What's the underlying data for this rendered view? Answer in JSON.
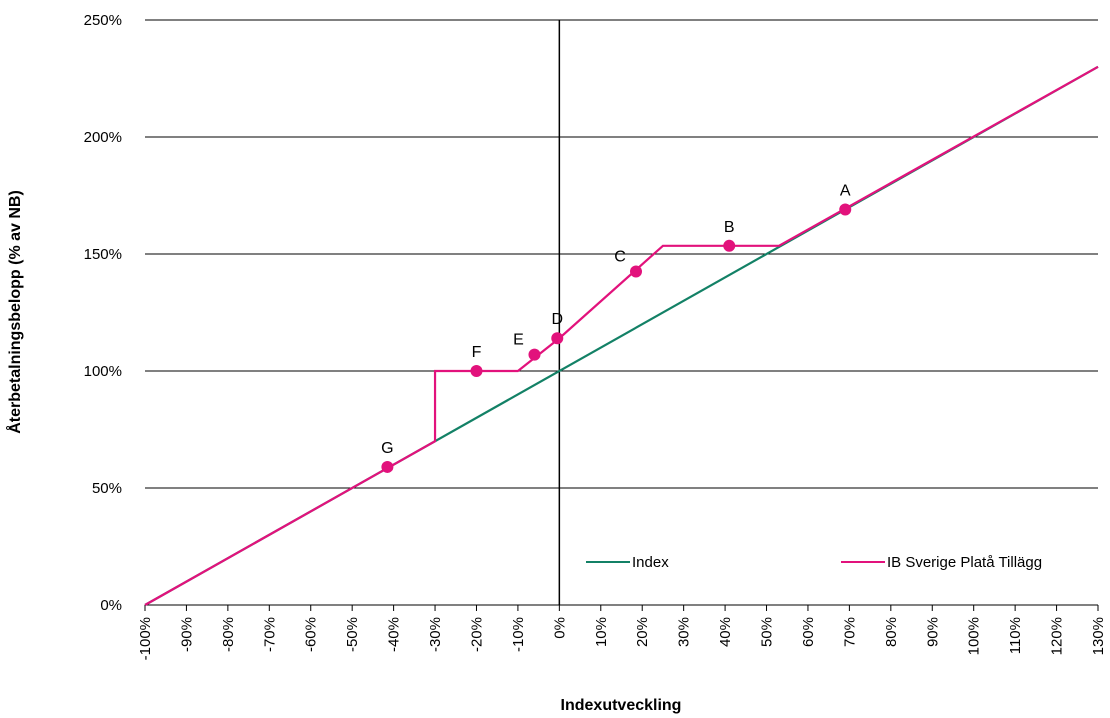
{
  "chart_data": {
    "type": "line",
    "xlabel": "Indexutveckling",
    "ylabel": "Återbetalningsbelopp (% av NB)",
    "xlim": [
      -100,
      130
    ],
    "ylim": [
      0,
      250
    ],
    "x_ticks": [
      "-100%",
      "-90%",
      "-80%",
      "-70%",
      "-60%",
      "-50%",
      "-40%",
      "-30%",
      "-20%",
      "-10%",
      "0%",
      "10%",
      "20%",
      "30%",
      "40%",
      "50%",
      "60%",
      "70%",
      "80%",
      "90%",
      "100%",
      "110%",
      "120%",
      "130%"
    ],
    "y_ticks": [
      "0%",
      "50%",
      "100%",
      "150%",
      "200%",
      "250%"
    ],
    "grid": "horizontal",
    "legend_position": "lower-right",
    "series": [
      {
        "name": "Index",
        "color": "#138166",
        "x": [
          -100,
          130
        ],
        "y": [
          0,
          230
        ]
      },
      {
        "name": "IB Sverige Platå Tillägg",
        "color": "#e2127c",
        "x": [
          -100,
          -30,
          -30,
          -10,
          0,
          25,
          53,
          130
        ],
        "y": [
          0,
          70,
          100,
          100,
          114,
          153.5,
          153.5,
          230
        ]
      }
    ],
    "points": [
      {
        "label": "A",
        "x": 69,
        "y": 169
      },
      {
        "label": "B",
        "x": 41,
        "y": 153.5
      },
      {
        "label": "C",
        "x": 18.5,
        "y": 142.5
      },
      {
        "label": "D",
        "x": -0.5,
        "y": 114
      },
      {
        "label": "E",
        "x": -6,
        "y": 107
      },
      {
        "label": "F",
        "x": -20,
        "y": 100
      },
      {
        "label": "G",
        "x": -41.5,
        "y": 59
      }
    ]
  }
}
